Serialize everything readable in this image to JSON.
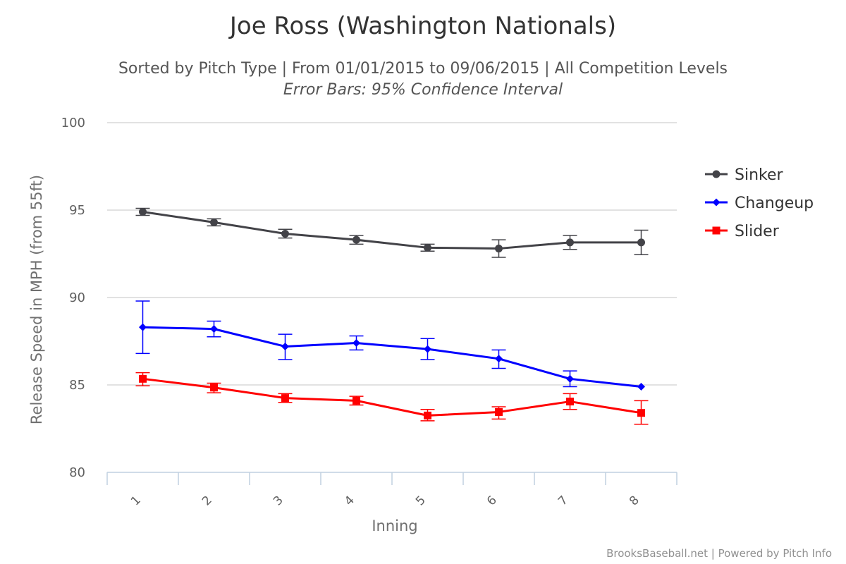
{
  "chart_data": {
    "type": "line",
    "title": "Joe Ross (Washington Nationals)",
    "subtitle": "Sorted by Pitch Type | From 01/01/2015 to 09/06/2015 | All Competition Levels",
    "subtitle2": "Error Bars: 95% Confidence Interval",
    "xlabel": "Inning",
    "ylabel": "Release Speed in MPH (from 55ft)",
    "categories": [
      "1",
      "2",
      "3",
      "4",
      "5",
      "6",
      "7",
      "8"
    ],
    "ylim": [
      80,
      100
    ],
    "yticks": [
      "80",
      "85",
      "90",
      "95",
      "100"
    ],
    "grid": true,
    "legend_position": "right",
    "series": [
      {
        "name": "Sinker",
        "color": "#434348",
        "marker": "circle",
        "values": [
          94.9,
          94.3,
          93.65,
          93.3,
          92.85,
          92.8,
          93.15,
          93.15
        ],
        "err_low": [
          94.7,
          94.1,
          93.4,
          93.05,
          92.65,
          92.3,
          92.75,
          92.45
        ],
        "err_high": [
          95.1,
          94.5,
          93.9,
          93.55,
          93.05,
          93.3,
          93.55,
          93.85
        ]
      },
      {
        "name": "Changeup",
        "color": "#0000ff",
        "marker": "diamond",
        "values": [
          88.3,
          88.2,
          87.2,
          87.4,
          87.05,
          86.5,
          85.35,
          84.9
        ],
        "err_low": [
          86.8,
          87.75,
          86.45,
          87.0,
          86.45,
          85.95,
          84.9,
          84.9
        ],
        "err_high": [
          89.8,
          88.65,
          87.9,
          87.8,
          87.65,
          87.0,
          85.8,
          84.9
        ]
      },
      {
        "name": "Slider",
        "color": "#ff0000",
        "marker": "square",
        "values": [
          85.35,
          84.85,
          84.25,
          84.1,
          83.25,
          83.45,
          84.05,
          83.4
        ],
        "err_low": [
          84.95,
          84.55,
          84.0,
          83.85,
          82.95,
          83.05,
          83.6,
          82.75
        ],
        "err_high": [
          85.7,
          85.1,
          84.5,
          84.35,
          83.6,
          83.75,
          84.5,
          84.1
        ]
      }
    ]
  },
  "credits": "BrooksBaseball.net | Powered by Pitch Info"
}
